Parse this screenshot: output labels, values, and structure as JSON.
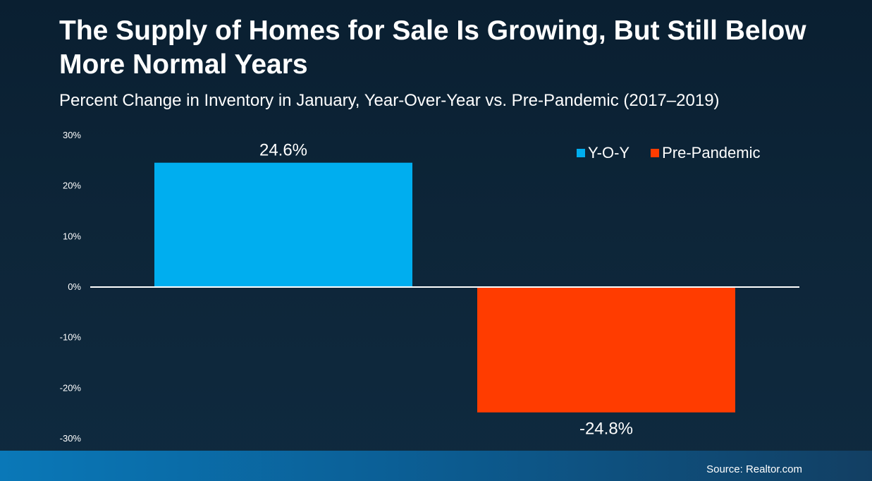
{
  "header": {
    "title": "The Supply of Homes for Sale Is Growing, But Still Below More Normal Years",
    "subtitle": "Percent Change in Inventory in January, Year-Over-Year vs. Pre-Pandemic (2017–2019)"
  },
  "footer": {
    "source": "Source: Realtor.com"
  },
  "colors": {
    "yoy": "#00aeef",
    "pre_pandemic": "#ff3c00",
    "axis_line": "#ffffff"
  },
  "chart_data": {
    "type": "bar",
    "categories": [
      "Y-O-Y",
      "Pre-Pandemic"
    ],
    "values": [
      24.6,
      -24.8
    ],
    "data_labels": [
      "24.6%",
      "-24.8%"
    ],
    "ylim": [
      -30,
      30
    ],
    "yticks": [
      30,
      20,
      10,
      0,
      -10,
      -20,
      -30
    ],
    "ytick_labels": [
      "30%",
      "20%",
      "10%",
      "0%",
      "-10%",
      "-20%",
      "-30%"
    ],
    "legend": [
      {
        "name": "Y-O-Y",
        "color": "#00aeef"
      },
      {
        "name": "Pre-Pandemic",
        "color": "#ff3c00"
      }
    ],
    "legend_position": "top-right",
    "grid": false
  }
}
